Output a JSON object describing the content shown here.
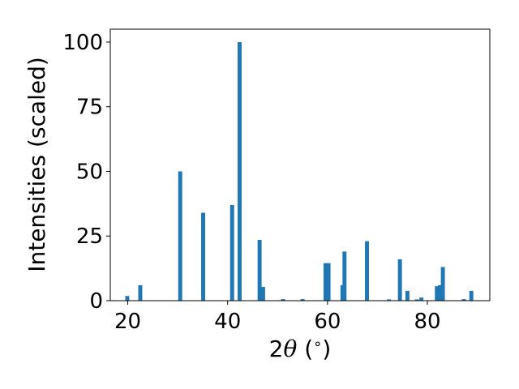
{
  "chart_data": {
    "type": "bar",
    "xlabel_pre": "2",
    "xlabel_sym": "θ",
    "xlabel_post": " (",
    "xlabel_deg": "∘",
    "xlabel_close": ")",
    "ylabel": "Intensities (scaled)",
    "xlim": [
      16.5,
      92.5
    ],
    "ylim": [
      0,
      105
    ],
    "xticks": [
      20,
      40,
      60,
      80
    ],
    "yticks": [
      0,
      25,
      50,
      75,
      100
    ],
    "bar_color": "#1f77b4",
    "bar_width": 0.8,
    "x": [
      19.9,
      22.5,
      30.5,
      35.1,
      40.9,
      42.4,
      46.4,
      47.1,
      51.1,
      55.0,
      59.6,
      60.2,
      63.0,
      63.4,
      67.9,
      72.3,
      74.5,
      76.0,
      77.9,
      78.8,
      81.9,
      82.5,
      83.1,
      87.3,
      88.8
    ],
    "values": [
      1.8,
      6.0,
      50.0,
      34.0,
      37.0,
      100.0,
      23.5,
      5.3,
      0.6,
      0.6,
      14.5,
      14.5,
      6.0,
      19.0,
      23.0,
      0.5,
      16.0,
      3.8,
      0.5,
      1.2,
      5.6,
      6.0,
      13.0,
      0.6,
      3.8
    ]
  }
}
